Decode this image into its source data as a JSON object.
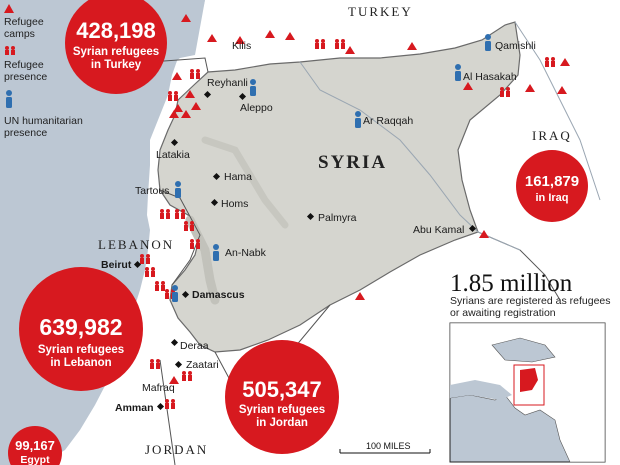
{
  "legend": {
    "camps": [
      "Refugee",
      "camps"
    ],
    "presence": [
      "Refugee",
      "presence"
    ],
    "un": [
      "UN humanitarian",
      "presence"
    ]
  },
  "countries": {
    "turkey": "TURKEY",
    "syria": "SYRIA",
    "iraq": "IRAQ",
    "lebanon": "LEBANON",
    "jordan": "JORDAN"
  },
  "places": {
    "kilis": "Kilis",
    "reyhanli": "Reyhanli",
    "aleppo": "Aleppo",
    "qamishli": "Qamishli",
    "al_hasakah": "Al Hasakah",
    "ar_raqqah": "Ar Raqqah",
    "latakia": "Latakia",
    "hama": "Hama",
    "tartous": "Tartous",
    "homs": "Homs",
    "palmyra": "Palmyra",
    "abu_kamal": "Abu Kamal",
    "beirut": "Beirut",
    "an_nabk": "An-Nabk",
    "damascus": "Damascus",
    "deraa": "Deraa",
    "zaatari": "Zaatari",
    "mafraq": "Mafraq",
    "amman": "Amman"
  },
  "bubbles": {
    "turkey": {
      "num": "428,198",
      "line1": "Syrian refugees",
      "line2": "in Turkey"
    },
    "iraq": {
      "num": "161,879",
      "line1": "in Iraq"
    },
    "lebanon": {
      "num": "639,982",
      "line1": "Syrian refugees",
      "line2": "in Lebanon"
    },
    "jordan": {
      "num": "505,347",
      "line1": "Syrian refugees",
      "line2": "in Jordan"
    },
    "egypt": {
      "num": "99,167",
      "line1": "Egypt"
    }
  },
  "total": {
    "value": "1.85 million",
    "line1": "Syrians are registered as refugees",
    "line2": "or awaiting registration"
  },
  "scale": "100 MILES",
  "colors": {
    "sea": "#bcc7d3",
    "land": "#ffffff",
    "syria": "#d5d5cf",
    "bubble": "#d7191f",
    "un": "#2f6fb0",
    "border": "#555555"
  }
}
